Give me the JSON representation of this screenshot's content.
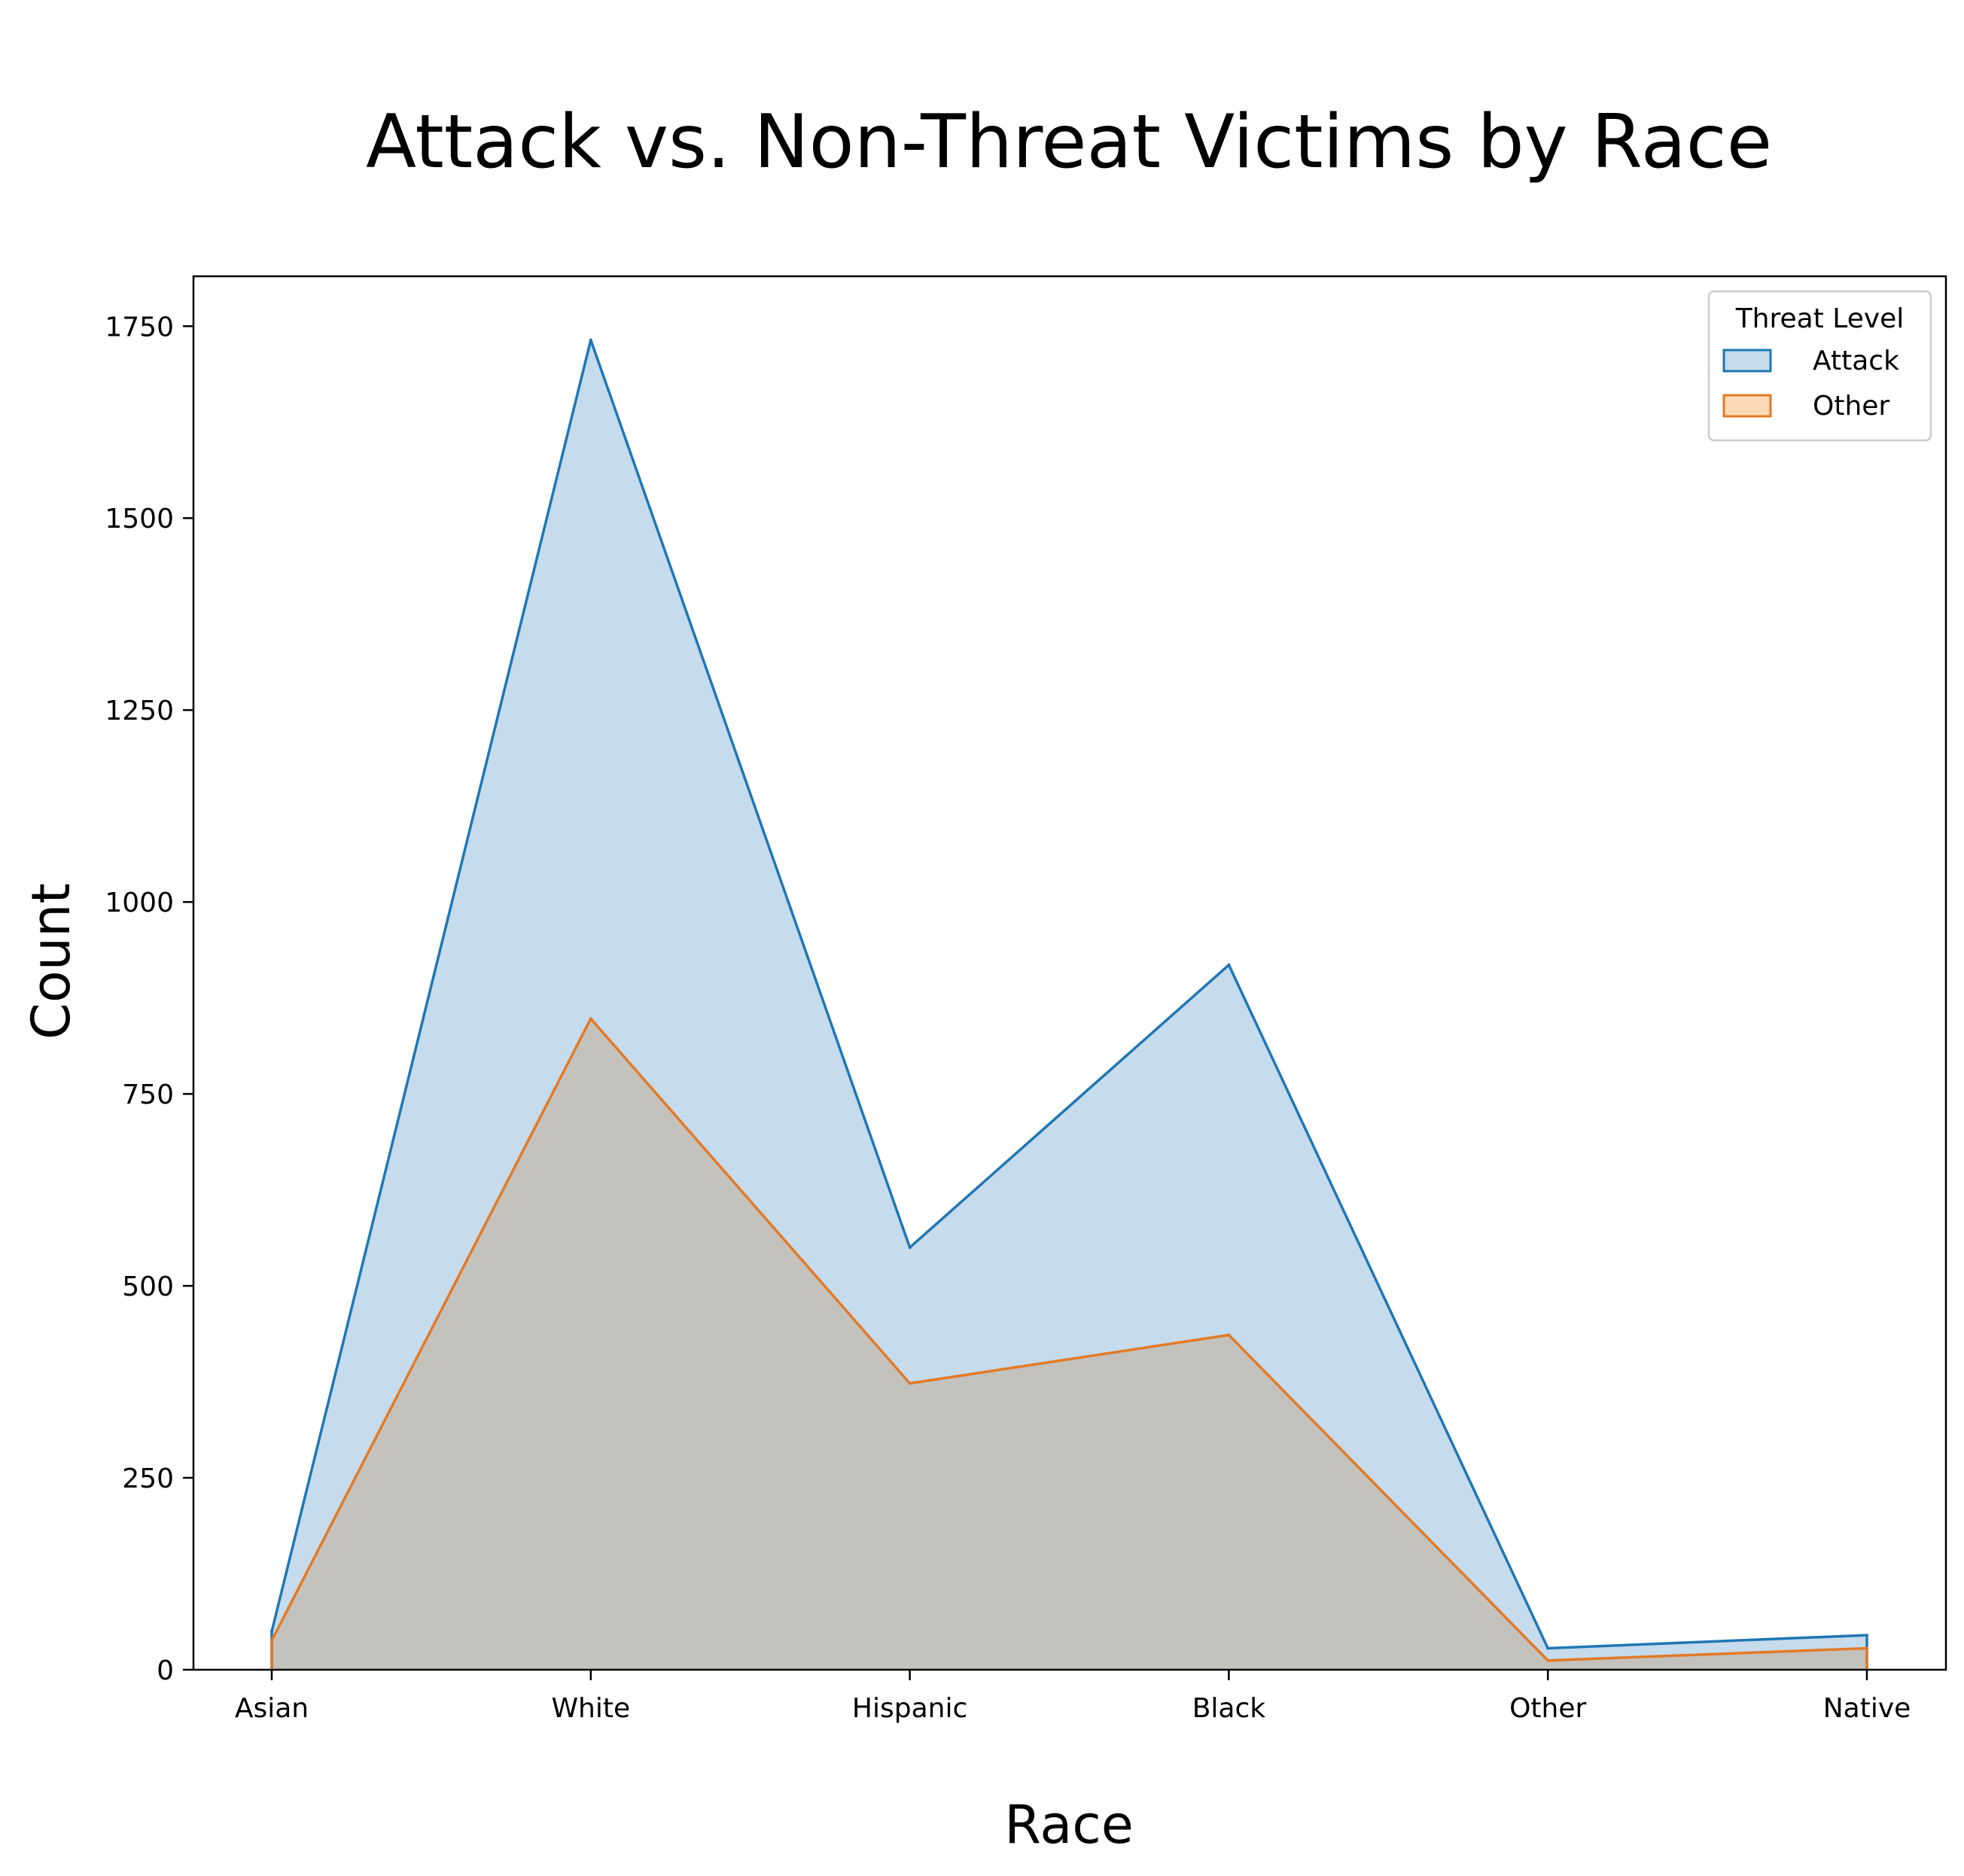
{
  "chart_data": {
    "type": "area",
    "title": "Attack vs. Non-Threat Victims by Race",
    "xlabel": "Race",
    "ylabel": "Count",
    "categories": [
      "Asian",
      "White",
      "Hispanic",
      "Black",
      "Other",
      "Native"
    ],
    "ylim": [
      0,
      1815
    ],
    "yticks": [
      0,
      250,
      500,
      750,
      1000,
      1250,
      1500,
      1750
    ],
    "grid": false,
    "legend": {
      "title": "Threat Level",
      "position": "top-right"
    },
    "series": [
      {
        "name": "Attack",
        "values": [
          50,
          1732,
          550,
          918,
          28,
          45
        ],
        "color": "#1f77b4",
        "fill": "#c6dbec"
      },
      {
        "name": "Other",
        "values": [
          38,
          848,
          373,
          436,
          12,
          28
        ],
        "color": "#e37a26",
        "fill": "#fdd9b7"
      }
    ],
    "overlap_fill": "#c4c2bd"
  }
}
